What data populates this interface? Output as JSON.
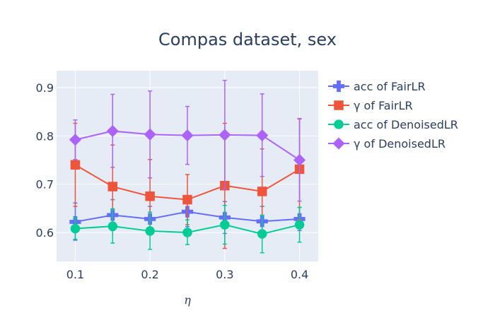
{
  "chart_data": {
    "type": "line",
    "title": "Compas dataset, sex",
    "xlabel": "η",
    "ylabel": "",
    "x": [
      0.1,
      0.15,
      0.2,
      0.25,
      0.3,
      0.35,
      0.4
    ],
    "xlim": [
      0.075,
      0.425
    ],
    "ylim": [
      0.54,
      0.935
    ],
    "xticks": [
      0.1,
      0.2,
      0.3,
      0.4
    ],
    "xtick_labels": [
      "0.1",
      "0.2",
      "0.3",
      "0.4"
    ],
    "yticks": [
      0.6,
      0.7,
      0.8,
      0.9
    ],
    "ytick_labels": [
      "0.6",
      "0.7",
      "0.8",
      "0.9"
    ],
    "grid": true,
    "legend": "right",
    "background_color": "#e5ecf6",
    "series": [
      {
        "name": "acc of FairLR",
        "color": "#636efa",
        "marker": "cross",
        "values": [
          0.622,
          0.636,
          0.628,
          0.643,
          0.631,
          0.623,
          0.628
        ],
        "err_low": [
          0.584,
          0.604,
          0.604,
          0.612,
          0.598,
          0.592,
          0.604
        ],
        "err_high": [
          0.661,
          0.668,
          0.654,
          0.675,
          0.664,
          0.654,
          0.652
        ]
      },
      {
        "name": "γ of FairLR",
        "color": "#ef553b",
        "marker": "square",
        "values": [
          0.74,
          0.695,
          0.675,
          0.668,
          0.697,
          0.685,
          0.731
        ],
        "err_low": [
          0.654,
          0.609,
          0.601,
          0.616,
          0.567,
          0.597,
          0.627
        ],
        "err_high": [
          0.826,
          0.781,
          0.751,
          0.72,
          0.826,
          0.773,
          0.835
        ]
      },
      {
        "name": "acc of DenoisedLR",
        "color": "#00cc96",
        "marker": "circle",
        "values": [
          0.608,
          0.613,
          0.603,
          0.6,
          0.616,
          0.597,
          0.616
        ],
        "err_low": [
          0.586,
          0.578,
          0.565,
          0.575,
          0.576,
          0.558,
          0.58
        ],
        "err_high": [
          0.631,
          0.649,
          0.642,
          0.626,
          0.656,
          0.636,
          0.652
        ]
      },
      {
        "name": "γ of DenoisedLR",
        "color": "#ab63fa",
        "marker": "diamond",
        "values": [
          0.792,
          0.81,
          0.803,
          0.801,
          0.802,
          0.801,
          0.75
        ],
        "err_low": [
          0.751,
          0.735,
          0.713,
          0.741,
          0.69,
          0.716,
          0.665
        ],
        "err_high": [
          0.833,
          0.886,
          0.893,
          0.861,
          0.915,
          0.887,
          0.836
        ]
      }
    ]
  }
}
